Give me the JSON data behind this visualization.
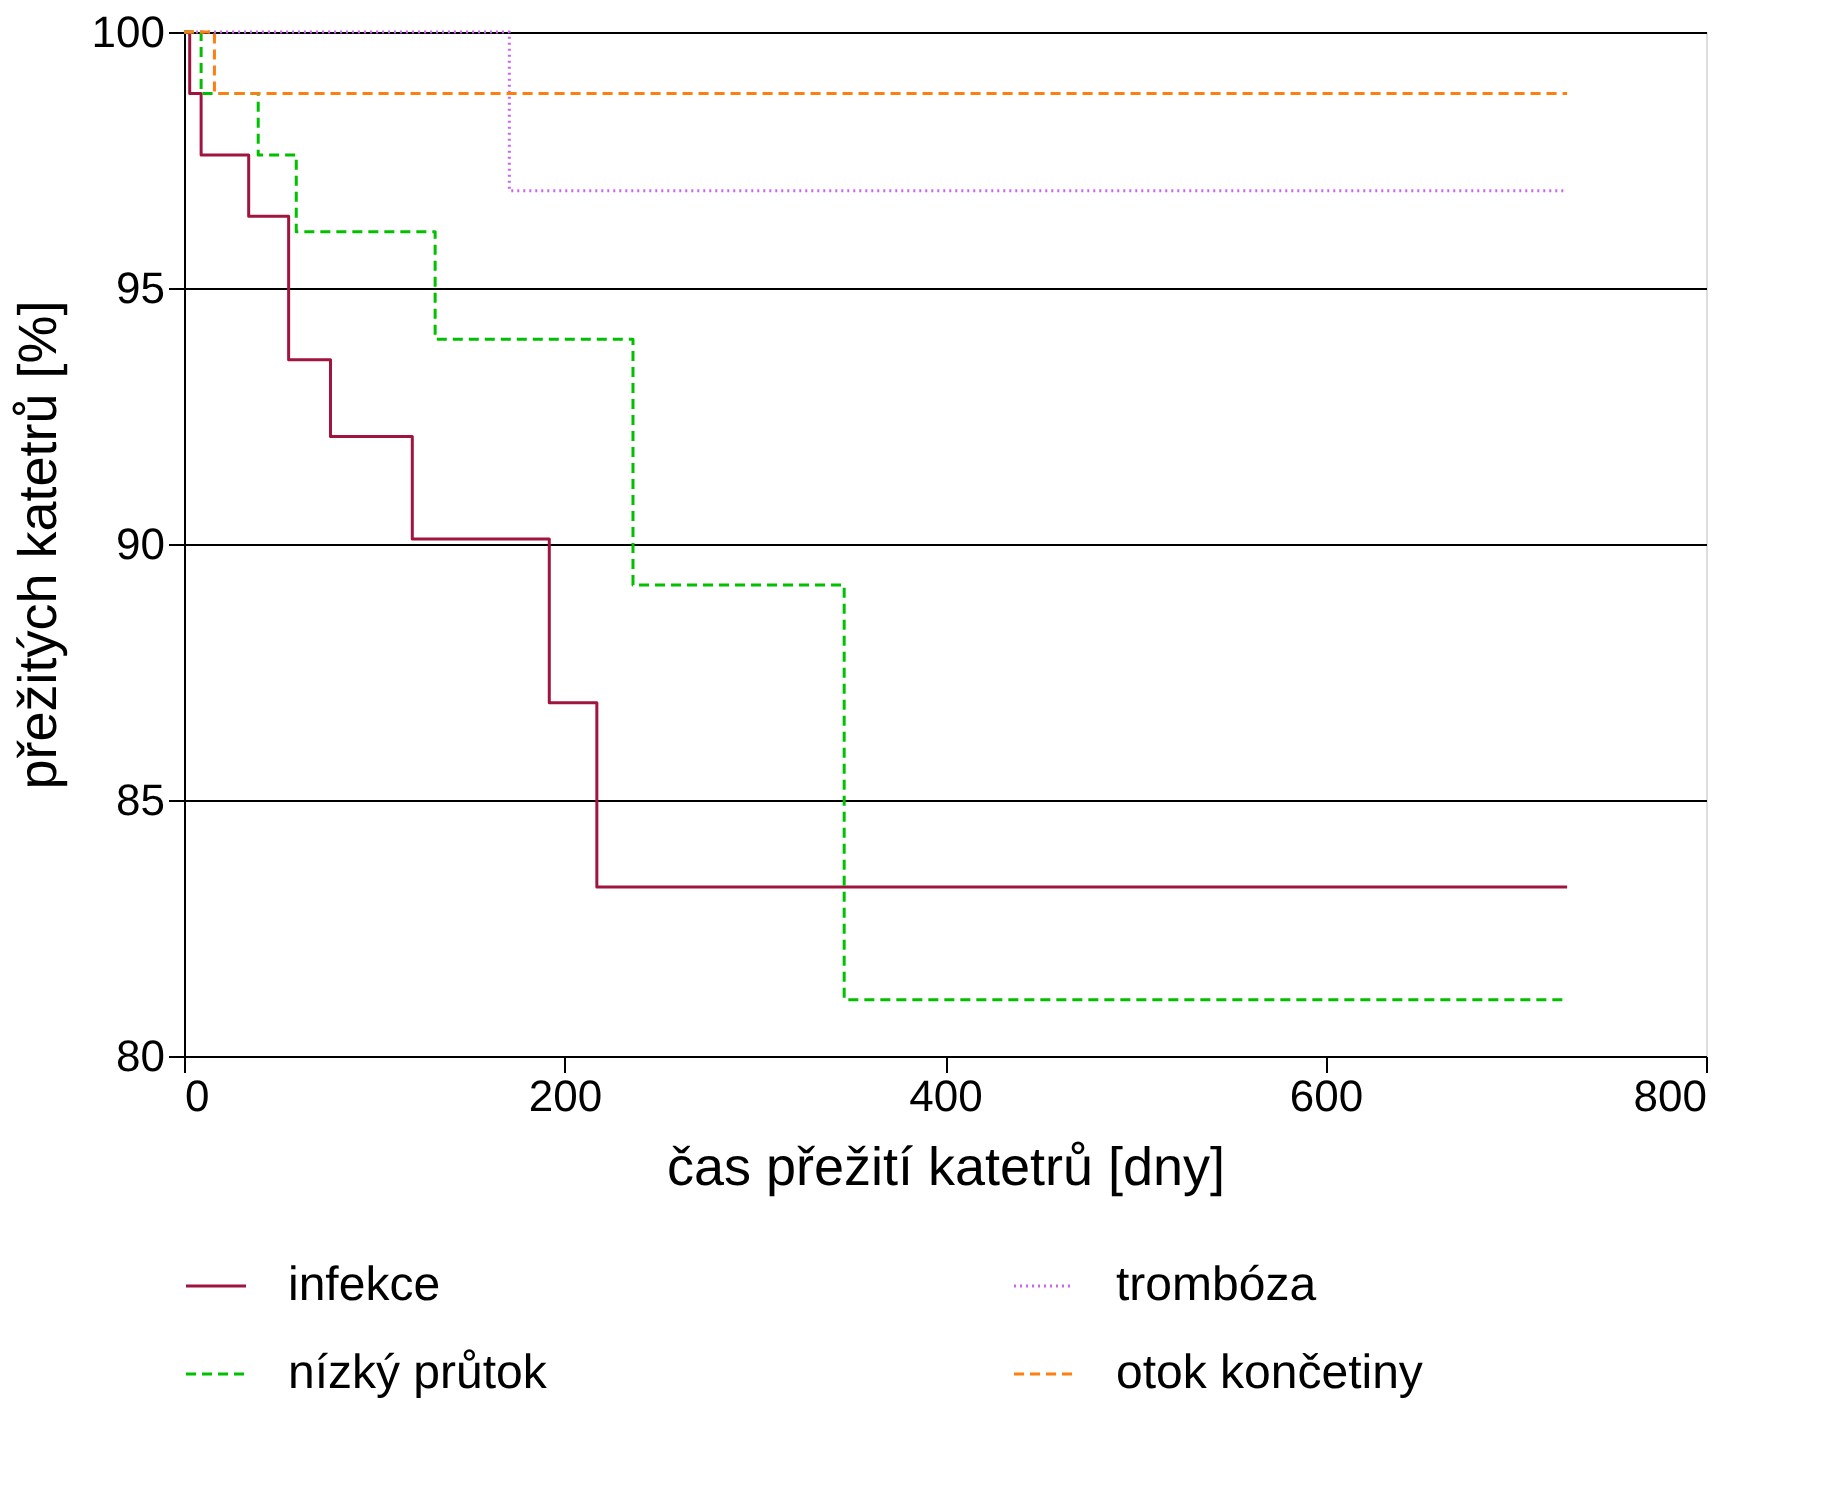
{
  "chart_data": {
    "type": "step",
    "xlabel": "čas přežití katetrů [dny]",
    "ylabel": "přežitých katetrů [%]",
    "xlim": [
      0,
      800
    ],
    "xticks": [
      0,
      200,
      400,
      600,
      800
    ],
    "ylim": [
      80,
      100
    ],
    "yticks": [
      80,
      85,
      90,
      95,
      100
    ],
    "grid": "y",
    "legend": "bottom",
    "marker": "none",
    "series": [
      {
        "name": "infekce",
        "color": "#a0153e",
        "line_style": "solid",
        "x": [
          0,
          3,
          9,
          34,
          55,
          77,
          120,
          192,
          217,
          727
        ],
        "values": [
          100,
          98.8,
          97.6,
          96.4,
          93.6,
          92.1,
          90.1,
          86.9,
          83.3,
          83.3
        ]
      },
      {
        "name": "nízký průtok",
        "color": "#00c000",
        "line_style": "dashed",
        "x": [
          0,
          9,
          39,
          59,
          132,
          236,
          347,
          727
        ],
        "values": [
          100,
          98.8,
          97.6,
          96.1,
          94.0,
          89.2,
          81.1,
          81.1
        ]
      },
      {
        "name": "trombóza",
        "color": "#cc66ee",
        "line_style": "dotted",
        "x": [
          0,
          171,
          727
        ],
        "values": [
          100,
          96.9,
          96.9
        ]
      },
      {
        "name": "otok končetiny",
        "color": "#ff7f0e",
        "line_style": "dashed",
        "x": [
          0,
          16,
          727
        ],
        "values": [
          100,
          98.8,
          98.8
        ]
      }
    ]
  }
}
